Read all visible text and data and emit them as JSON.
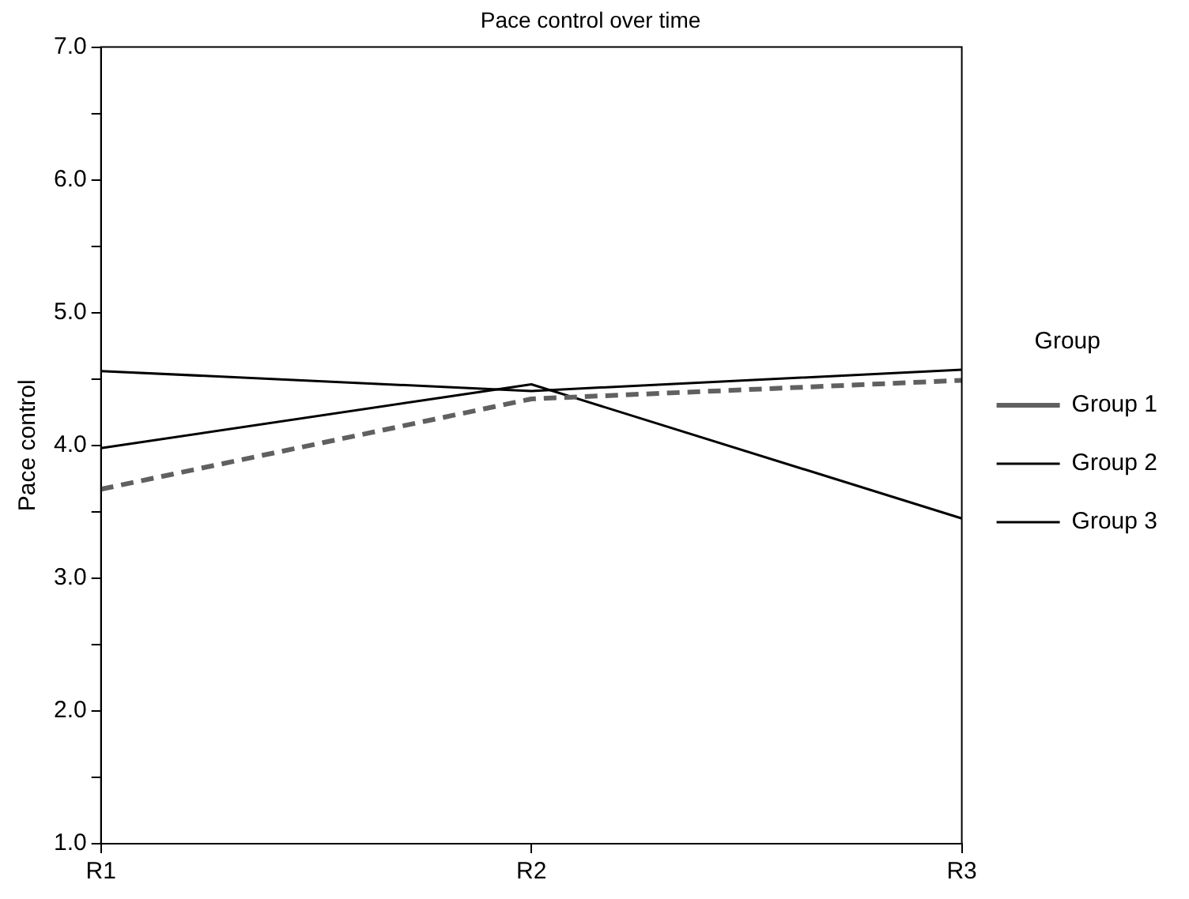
{
  "chart_data": {
    "type": "line",
    "title": "Pace control over time",
    "ylabel": "Pace control",
    "legend_title": "Group",
    "legend": "right",
    "grid": false,
    "marker": "none",
    "categories": [
      "R1",
      "R2",
      "R3"
    ],
    "series": [
      {
        "name": "Group 1",
        "color": "#606060",
        "line_style": "dashed",
        "values": [
          3.67,
          4.35,
          4.49
        ]
      },
      {
        "name": "Group 2",
        "color": "#000000",
        "line_style": "solid",
        "values": [
          4.56,
          4.41,
          4.57
        ]
      },
      {
        "name": "Group 3",
        "color": "#000000",
        "line_style": "solid",
        "values": [
          3.98,
          4.46,
          3.45
        ]
      }
    ],
    "ylim": [
      1,
      7
    ],
    "yticks": [
      {
        "value": 1,
        "label": "1.0"
      },
      {
        "value": 1.5,
        "label": null
      },
      {
        "value": 2,
        "label": "2.0"
      },
      {
        "value": 2.5,
        "label": null
      },
      {
        "value": 3,
        "label": "3.0"
      },
      {
        "value": 3.5,
        "label": null
      },
      {
        "value": 4,
        "label": "4.0"
      },
      {
        "value": 4.5,
        "label": null
      },
      {
        "value": 5,
        "label": "5.0"
      },
      {
        "value": 5.5,
        "label": null
      },
      {
        "value": 6,
        "label": "6.0"
      },
      {
        "value": 6.5,
        "label": null
      },
      {
        "value": 7,
        "label": "7.0"
      }
    ]
  }
}
